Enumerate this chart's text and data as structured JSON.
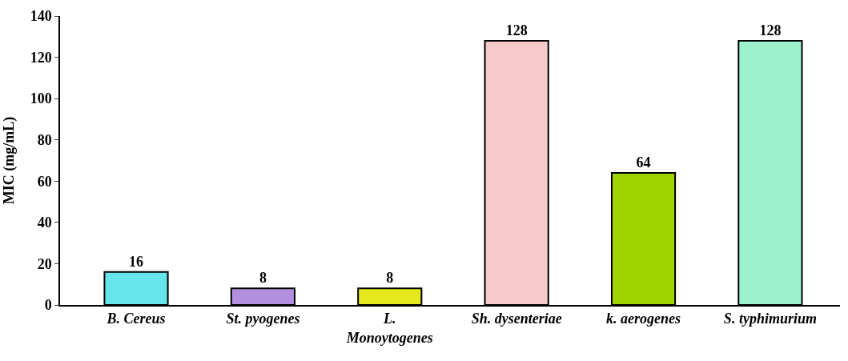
{
  "chart_data": {
    "type": "bar",
    "ylabel": "MIC (mg/mL)",
    "categories": [
      "B. Cereus",
      "St. pyogenes",
      "L.\nMonoytogenes",
      "Sh. dysenteriae",
      "k. aerogenes",
      "S. typhimurium"
    ],
    "values": [
      16,
      8,
      8,
      128,
      64,
      128
    ],
    "colors": [
      "#66e6ea",
      "#b48fe0",
      "#e6e81e",
      "#f7caca",
      "#9fd400",
      "#9cf2cc"
    ],
    "ylim": [
      0,
      140
    ],
    "yticks": [
      0,
      20,
      40,
      60,
      80,
      100,
      120,
      140
    ],
    "legend": false,
    "data_labels": true
  }
}
